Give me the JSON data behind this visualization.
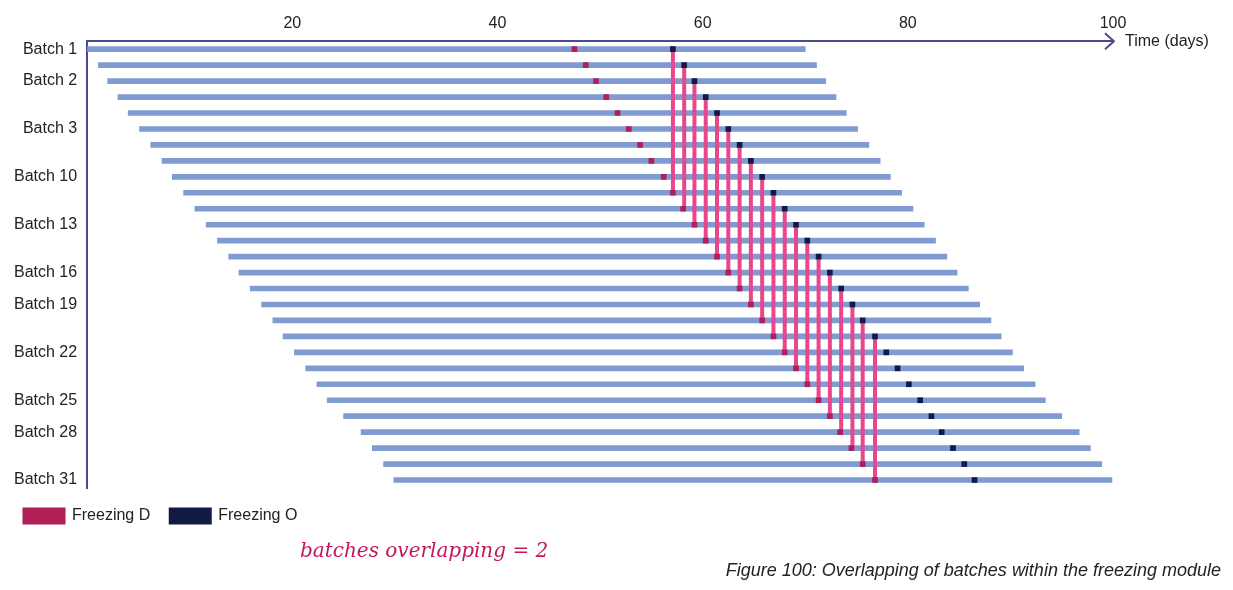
{
  "chart_data": {
    "type": "bar",
    "orientation": "horizontal",
    "xlabel": "Time (days)",
    "xlim": [
      0,
      100
    ],
    "xticks": [
      20,
      40,
      60,
      80,
      100
    ],
    "grid": false,
    "legend": "bottom left",
    "categories": [
      "Batch 1",
      null,
      "Batch 2",
      null,
      null,
      "Batch 3",
      null,
      null,
      "Batch 10",
      null,
      null,
      "Batch 13",
      null,
      null,
      "Batch 16",
      null,
      "Batch 19",
      null,
      null,
      "Batch 22",
      null,
      null,
      "Batch 25",
      null,
      "Batch 28",
      null,
      null,
      "Batch 31"
    ],
    "annotations": [
      "batches overlapping = 2",
      "Figure 100: Overlapping of batches within the freezing module"
    ],
    "series": [
      {
        "color": "#7f9bd2",
        "base": [
          0,
          1.1,
          2,
          3,
          4,
          5.1,
          6.2,
          7.3,
          8.3,
          9.4,
          10.5,
          11.6,
          12.7,
          13.8,
          14.8,
          15.9,
          17,
          18.1,
          19.1,
          20.2,
          21.3,
          22.4,
          23.4,
          25,
          26.7,
          27.8,
          28.9,
          29.9
        ],
        "values": [
          70,
          70,
          70,
          70,
          70,
          70,
          70,
          70,
          70,
          70,
          70,
          70,
          70,
          70,
          70,
          70,
          70,
          70,
          70,
          70,
          70,
          70,
          70,
          70,
          70,
          70,
          70,
          70
        ]
      },
      {
        "type": "scatter",
        "name": "Freezing D",
        "color": "#b01f58",
        "marker": "square",
        "values": [
          47.5,
          48.6,
          49.6,
          50.6,
          51.7,
          52.8,
          53.9,
          55,
          56.2,
          57.1,
          58.1,
          59.2,
          60.3,
          61.4,
          62.5,
          63.6,
          64.7,
          65.8,
          66.9,
          68,
          69.1,
          70.2,
          71.3,
          72.4,
          73.4,
          74.5,
          75.6,
          76.8
        ]
      },
      {
        "type": "scatter",
        "name": "Freezing O",
        "color": "#111a45",
        "marker": "square",
        "values": [
          57.1,
          58.2,
          59.2,
          60.3,
          61.4,
          62.5,
          63.6,
          64.7,
          65.8,
          66.9,
          68,
          69.1,
          70.2,
          71.3,
          72.4,
          73.5,
          74.6,
          75.6,
          76.8,
          77.9,
          79,
          80.1,
          81.2,
          82.3,
          83.3,
          84.4,
          85.5,
          86.5
        ]
      },
      {
        "type": "line",
        "color": "#e8478b",
        "values": [
          57.1,
          57.1,
          57.1,
          57.1,
          57.1,
          57.1,
          57.1,
          57.1,
          57.1,
          57.1,
          null,
          null,
          null,
          null,
          null,
          null,
          null,
          null,
          null,
          null,
          null,
          null,
          null,
          null,
          null,
          null,
          null,
          null
        ]
      },
      {
        "type": "line",
        "color": "#e8478b",
        "values": [
          null,
          58.2,
          58.2,
          58.2,
          58.2,
          58.2,
          58.2,
          58.2,
          58.2,
          58.2,
          58.2,
          null,
          null,
          null,
          null,
          null,
          null,
          null,
          null,
          null,
          null,
          null,
          null,
          null,
          null,
          null,
          null,
          null
        ]
      },
      {
        "type": "line",
        "color": "#e8478b",
        "values": [
          null,
          null,
          59.2,
          59.2,
          59.2,
          59.2,
          59.2,
          59.2,
          59.2,
          59.2,
          59.2,
          59.2,
          null,
          null,
          null,
          null,
          null,
          null,
          null,
          null,
          null,
          null,
          null,
          null,
          null,
          null,
          null,
          null
        ]
      },
      {
        "type": "line",
        "color": "#e8478b",
        "values": [
          null,
          null,
          null,
          60.3,
          60.3,
          60.3,
          60.3,
          60.3,
          60.3,
          60.3,
          60.3,
          60.3,
          60.3,
          null,
          null,
          null,
          null,
          null,
          null,
          null,
          null,
          null,
          null,
          null,
          null,
          null,
          null,
          null
        ]
      },
      {
        "type": "line",
        "color": "#e8478b",
        "values": [
          null,
          null,
          null,
          null,
          61.4,
          61.4,
          61.4,
          61.4,
          61.4,
          61.4,
          61.4,
          61.4,
          61.4,
          61.4,
          null,
          null,
          null,
          null,
          null,
          null,
          null,
          null,
          null,
          null,
          null,
          null,
          null,
          null
        ]
      },
      {
        "type": "line",
        "color": "#e8478b",
        "values": [
          null,
          null,
          null,
          null,
          null,
          62.5,
          62.5,
          62.5,
          62.5,
          62.5,
          62.5,
          62.5,
          62.5,
          62.5,
          62.5,
          null,
          null,
          null,
          null,
          null,
          null,
          null,
          null,
          null,
          null,
          null,
          null,
          null
        ]
      },
      {
        "type": "line",
        "color": "#e8478b",
        "values": [
          null,
          null,
          null,
          null,
          null,
          null,
          63.6,
          63.6,
          63.6,
          63.6,
          63.6,
          63.6,
          63.6,
          63.6,
          63.6,
          63.6,
          null,
          null,
          null,
          null,
          null,
          null,
          null,
          null,
          null,
          null,
          null,
          null
        ]
      },
      {
        "type": "line",
        "color": "#e8478b",
        "values": [
          null,
          null,
          null,
          null,
          null,
          null,
          null,
          64.7,
          64.7,
          64.7,
          64.7,
          64.7,
          64.7,
          64.7,
          64.7,
          64.7,
          64.7,
          null,
          null,
          null,
          null,
          null,
          null,
          null,
          null,
          null,
          null,
          null
        ]
      },
      {
        "type": "line",
        "color": "#e8478b",
        "values": [
          null,
          null,
          null,
          null,
          null,
          null,
          null,
          null,
          65.8,
          65.8,
          65.8,
          65.8,
          65.8,
          65.8,
          65.8,
          65.8,
          65.8,
          65.8,
          null,
          null,
          null,
          null,
          null,
          null,
          null,
          null,
          null,
          null
        ]
      },
      {
        "type": "line",
        "color": "#e8478b",
        "values": [
          null,
          null,
          null,
          null,
          null,
          null,
          null,
          null,
          null,
          66.9,
          66.9,
          66.9,
          66.9,
          66.9,
          66.9,
          66.9,
          66.9,
          66.9,
          66.9,
          null,
          null,
          null,
          null,
          null,
          null,
          null,
          null,
          null
        ]
      },
      {
        "type": "line",
        "color": "#e8478b",
        "values": [
          null,
          null,
          null,
          null,
          null,
          null,
          null,
          null,
          null,
          null,
          68,
          68,
          68,
          68,
          68,
          68,
          68,
          68,
          68,
          68,
          null,
          null,
          null,
          null,
          null,
          null,
          null,
          null
        ]
      },
      {
        "type": "line",
        "color": "#e8478b",
        "values": [
          null,
          null,
          null,
          null,
          null,
          null,
          null,
          null,
          null,
          null,
          null,
          69.1,
          69.1,
          69.1,
          69.1,
          69.1,
          69.1,
          69.1,
          69.1,
          69.1,
          69.1,
          null,
          null,
          null,
          null,
          null,
          null,
          null
        ]
      },
      {
        "type": "line",
        "color": "#e8478b",
        "values": [
          null,
          null,
          null,
          null,
          null,
          null,
          null,
          null,
          null,
          null,
          null,
          null,
          70.2,
          70.2,
          70.2,
          70.2,
          70.2,
          70.2,
          70.2,
          70.2,
          70.2,
          70.2,
          null,
          null,
          null,
          null,
          null,
          null
        ]
      },
      {
        "type": "line",
        "color": "#e8478b",
        "values": [
          null,
          null,
          null,
          null,
          null,
          null,
          null,
          null,
          null,
          null,
          null,
          null,
          null,
          71.3,
          71.3,
          71.3,
          71.3,
          71.3,
          71.3,
          71.3,
          71.3,
          71.3,
          71.3,
          null,
          null,
          null,
          null,
          null
        ]
      },
      {
        "type": "line",
        "color": "#e8478b",
        "values": [
          null,
          null,
          null,
          null,
          null,
          null,
          null,
          null,
          null,
          null,
          null,
          null,
          null,
          null,
          72.4,
          72.4,
          72.4,
          72.4,
          72.4,
          72.4,
          72.4,
          72.4,
          72.4,
          72.4,
          null,
          null,
          null,
          null
        ]
      },
      {
        "type": "line",
        "color": "#e8478b",
        "values": [
          null,
          null,
          null,
          null,
          null,
          null,
          null,
          null,
          null,
          null,
          null,
          null,
          null,
          null,
          null,
          73.5,
          73.5,
          73.5,
          73.5,
          73.5,
          73.5,
          73.5,
          73.5,
          73.5,
          73.5,
          null,
          null,
          null
        ]
      },
      {
        "type": "line",
        "color": "#e8478b",
        "values": [
          null,
          null,
          null,
          null,
          null,
          null,
          null,
          null,
          null,
          null,
          null,
          null,
          null,
          null,
          null,
          null,
          74.6,
          74.6,
          74.6,
          74.6,
          74.6,
          74.6,
          74.6,
          74.6,
          74.6,
          74.6,
          null,
          null
        ]
      },
      {
        "type": "line",
        "color": "#e8478b",
        "values": [
          null,
          null,
          null,
          null,
          null,
          null,
          null,
          null,
          null,
          null,
          null,
          null,
          null,
          null,
          null,
          null,
          null,
          75.6,
          75.6,
          75.6,
          75.6,
          75.6,
          75.6,
          75.6,
          75.6,
          75.6,
          75.6,
          null
        ]
      },
      {
        "type": "line",
        "color": "#e8478b",
        "values": [
          null,
          null,
          null,
          null,
          null,
          null,
          null,
          null,
          null,
          null,
          null,
          null,
          null,
          null,
          null,
          null,
          null,
          null,
          76.8,
          76.8,
          76.8,
          76.8,
          76.8,
          76.8,
          76.8,
          76.8,
          76.8,
          76.8
        ]
      }
    ]
  }
}
